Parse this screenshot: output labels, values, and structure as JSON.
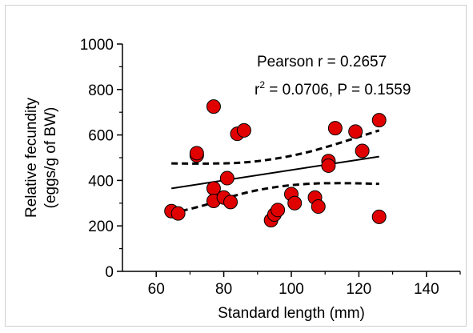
{
  "chart_data": {
    "type": "scatter",
    "xlabel": "Standard length (mm)",
    "ylabel_line1": "Relative fecundity",
    "ylabel_line2": "(eggs/g of BW)",
    "xlim": [
      50,
      150
    ],
    "ylim": [
      0,
      1000
    ],
    "xticks": [
      60,
      80,
      100,
      120,
      140
    ],
    "yticks": [
      0,
      200,
      400,
      600,
      800,
      1000
    ],
    "grid": false,
    "annotations": {
      "pearson_label": "Pearson r =  0.2657",
      "r2_prefix": "r",
      "r2_sup": "2",
      "r2_rest": " = 0.0706, P = 0.1559"
    },
    "marker_color": "#e00000",
    "points": [
      [
        64.5,
        265
      ],
      [
        66.5,
        255
      ],
      [
        72,
        510
      ],
      [
        72,
        520
      ],
      [
        77,
        725
      ],
      [
        77,
        365
      ],
      [
        77,
        310
      ],
      [
        80,
        325
      ],
      [
        81,
        410
      ],
      [
        82,
        305
      ],
      [
        84,
        605
      ],
      [
        86,
        620
      ],
      [
        94,
        225
      ],
      [
        95,
        250
      ],
      [
        96,
        270
      ],
      [
        100,
        340
      ],
      [
        101,
        300
      ],
      [
        107,
        325
      ],
      [
        108,
        285
      ],
      [
        111,
        485
      ],
      [
        111,
        465
      ],
      [
        113,
        630
      ],
      [
        119,
        615
      ],
      [
        121,
        530
      ],
      [
        126,
        665
      ],
      [
        126,
        240
      ]
    ],
    "regression": {
      "x": [
        64.5,
        126
      ],
      "y": [
        365,
        505
      ]
    },
    "ci_upper": {
      "x": [
        64.5,
        74,
        85,
        95,
        105,
        115,
        126
      ],
      "y": [
        475,
        474,
        478,
        495,
        525,
        568,
        620
      ]
    },
    "ci_lower": {
      "x": [
        64.5,
        74,
        85,
        95,
        105,
        115,
        126
      ],
      "y": [
        255,
        290,
        340,
        370,
        385,
        388,
        385
      ]
    }
  }
}
